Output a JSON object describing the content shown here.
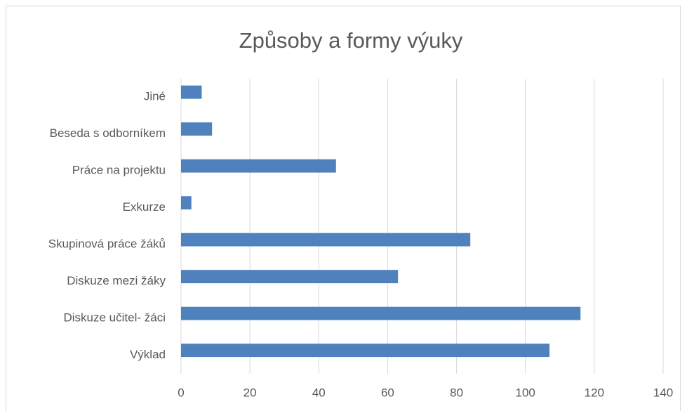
{
  "chart_data": {
    "type": "barh",
    "title": "Způsoby a formy výuky",
    "categories": [
      "Jiné",
      "Beseda s odborníkem",
      "Práce na projektu",
      "Exkurze",
      "Skupinová práce žáků",
      "Diskuze mezi žáky",
      "Diskuze učitel- žáci",
      "Výklad"
    ],
    "values": [
      6,
      9,
      45,
      3,
      84,
      63,
      116,
      107
    ],
    "color": "#4f81bd",
    "xlim": [
      0,
      140
    ],
    "xticks": [
      0,
      20,
      40,
      60,
      80,
      100,
      120,
      140
    ],
    "grid": true
  }
}
